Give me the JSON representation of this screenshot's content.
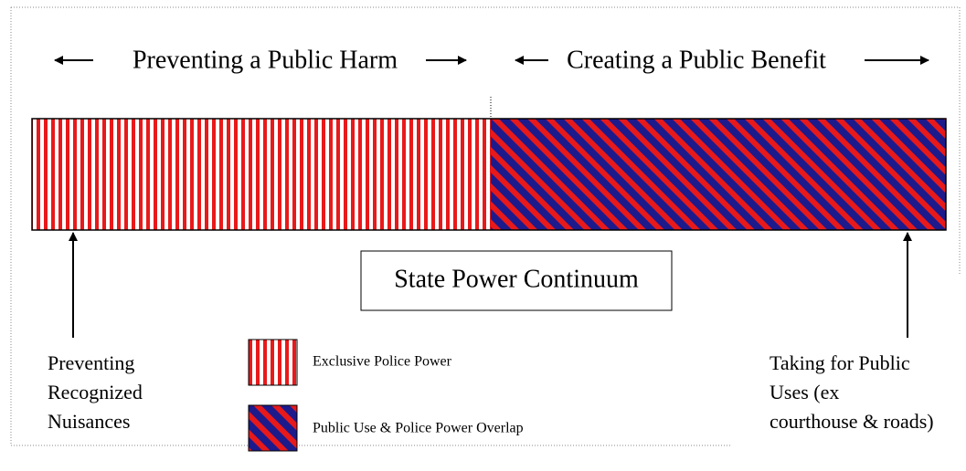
{
  "header": {
    "left": "Preventing a Public Harm",
    "right": "Creating a Public Benefit"
  },
  "center_label": "State Power Continuum",
  "left_label": [
    "Preventing",
    "Recognized",
    "Nuisances"
  ],
  "right_label": [
    "Taking for Public",
    "Uses (ex",
    "courthouse & roads)"
  ],
  "legend": [
    {
      "label": "Exclusive Police Power"
    },
    {
      "label": "Public Use & Police Power Overlap"
    }
  ]
}
